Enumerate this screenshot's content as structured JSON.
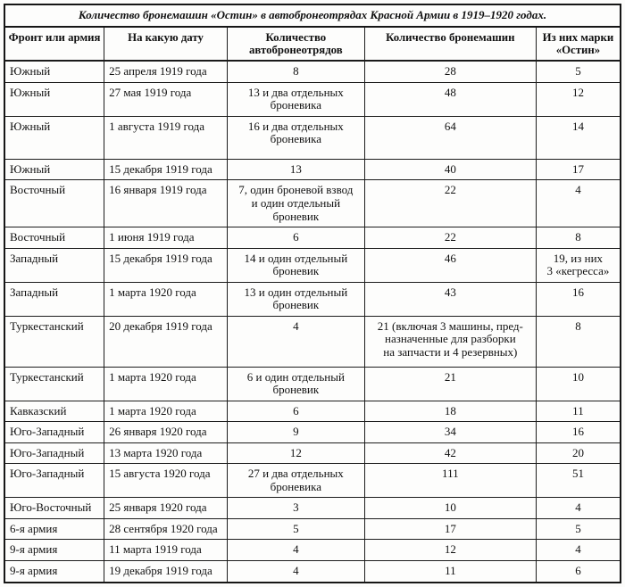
{
  "title": "Количество бронемашин «Остин» в автобронеотрядах Красной Армии в 1919–1920 годах.",
  "table": {
    "columns": [
      "Фронт или армия",
      "На какую дату",
      "Количество\nавтобронеотрядов",
      "Количество бронемашин",
      "Из них марки\n«Остин»"
    ],
    "rows": [
      [
        "Южный",
        "25 апреля 1919 года",
        "8",
        "28",
        "5"
      ],
      [
        "Южный",
        "27 мая 1919 года",
        "13 и два отдельных\nброневика",
        "48",
        "12"
      ],
      [
        "Южный",
        "1 августа 1919 года",
        "16 и два отдельных\nброневика",
        "64",
        "14"
      ],
      [
        "Южный",
        "15 декабря 1919 года",
        "13",
        "40",
        "17"
      ],
      [
        "Восточный",
        "16 января 1919 года",
        "7, один броневой взвод\nи один отдельный\nброневик",
        "22",
        "4"
      ],
      [
        "Восточный",
        "1 июня 1919 года",
        "6",
        "22",
        "8"
      ],
      [
        "Западный",
        "15 декабря 1919 года",
        "14 и один отдельный\nброневик",
        "46",
        "19, из них\n3 «кегресса»"
      ],
      [
        "Западный",
        "1 марта 1920 года",
        "13 и один отдельный\nброневик",
        "43",
        "16"
      ],
      [
        "Туркестанский",
        "20 декабря 1919 года",
        "4",
        "21 (включая 3 машины, пред-\nназначенные для разборки\nна запчасти и 4 резервных)",
        "8"
      ],
      [
        "Туркестанский",
        "1 марта 1920 года",
        "6 и один отдельный\nброневик",
        "21",
        "10"
      ],
      [
        "Кавказский",
        "1 марта 1920 года",
        "6",
        "18",
        "11"
      ],
      [
        "Юго-Западный",
        "26 января 1920 года",
        "9",
        "34",
        "16"
      ],
      [
        "Юго-Западный",
        "13 марта 1920 года",
        "12",
        "42",
        "20"
      ],
      [
        "Юго-Западный",
        "15 августа 1920 года",
        "27 и два отдельных\nброневика",
        "111",
        "51"
      ],
      [
        "Юго-Восточный",
        "25 января 1920 года",
        "3",
        "10",
        "4"
      ],
      [
        "6-я армия",
        "28 сентября 1920 года",
        "5",
        "17",
        "5"
      ],
      [
        "9-я армия",
        "11 марта 1919 года",
        "4",
        "12",
        "4"
      ],
      [
        "9-я армия",
        "19 декабря 1919 года",
        "4",
        "11",
        "6"
      ]
    ]
  },
  "colors": {
    "border": "#1c1c1c",
    "background": "#fcfcfb",
    "text": "#111111"
  }
}
